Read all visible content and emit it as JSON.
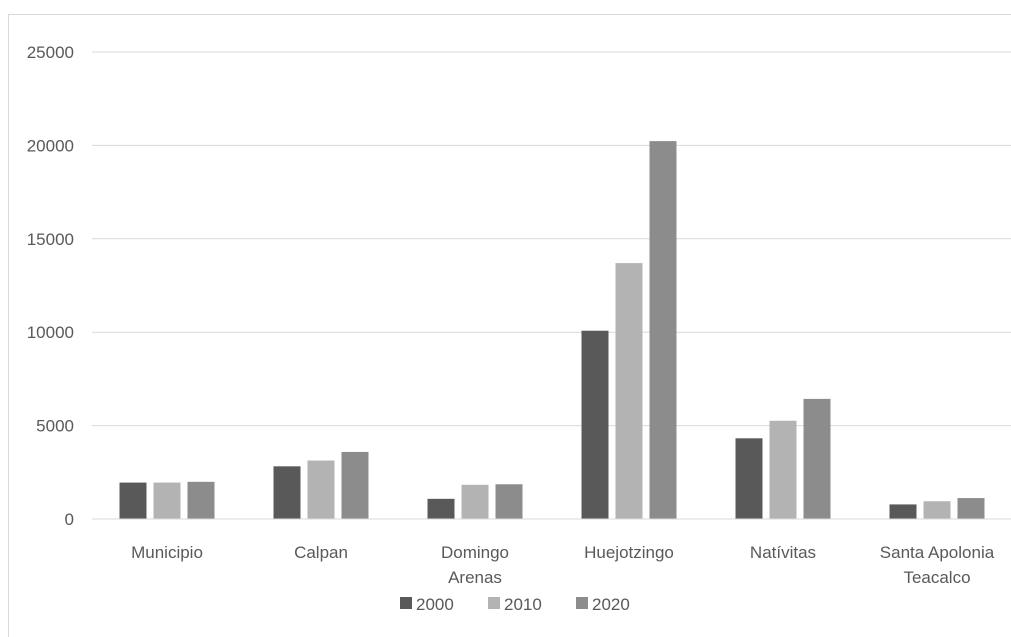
{
  "chart_data": {
    "type": "bar",
    "title": "",
    "xlabel": "",
    "ylabel": "",
    "ylim": [
      0,
      25000
    ],
    "yticks": [
      0,
      5000,
      10000,
      15000,
      20000,
      25000
    ],
    "ytick_labels": [
      "0",
      "5000",
      "10000",
      "15000",
      "20000",
      "25000"
    ],
    "grid": true,
    "legend_position": "bottom",
    "categories": [
      [
        "Municipio"
      ],
      [
        "Calpan"
      ],
      [
        "Domingo",
        "Arenas"
      ],
      [
        "Huejotzingo"
      ],
      [
        "Natívitas"
      ],
      [
        "Santa Apolonia",
        "Teacalco"
      ]
    ],
    "series": [
      {
        "name": "2000",
        "color": "#595959",
        "values": [
          1950,
          2820,
          1080,
          10080,
          4320,
          780
        ]
      },
      {
        "name": "2010",
        "color": "#b3b3b3",
        "values": [
          1950,
          3130,
          1830,
          13700,
          5260,
          950
        ]
      },
      {
        "name": "2020",
        "color": "#8c8c8c",
        "values": [
          1990,
          3590,
          1860,
          20230,
          6430,
          1120
        ]
      }
    ]
  }
}
